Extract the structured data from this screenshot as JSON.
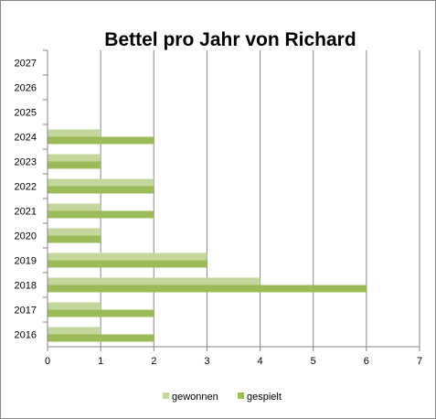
{
  "chart_data": {
    "type": "bar",
    "orientation": "horizontal",
    "title": "Bettel pro Jahr von Richard",
    "categories": [
      "2016",
      "2017",
      "2018",
      "2019",
      "2020",
      "2021",
      "2022",
      "2023",
      "2024",
      "2025",
      "2026",
      "2027"
    ],
    "series": [
      {
        "name": "gewonnen",
        "color": "#c3d69b",
        "values": [
          1,
          1,
          4,
          3,
          1,
          1,
          2,
          1,
          1,
          null,
          null,
          null
        ]
      },
      {
        "name": "gespielt",
        "color": "#9bbb59",
        "values": [
          2,
          2,
          6,
          3,
          1,
          2,
          2,
          1,
          2,
          null,
          null,
          null
        ]
      }
    ],
    "xlim": [
      0,
      7
    ],
    "xticks": [
      "0",
      "1",
      "2",
      "3",
      "4",
      "5",
      "6",
      "7"
    ],
    "grid": "vertical",
    "legend": "bottom"
  }
}
